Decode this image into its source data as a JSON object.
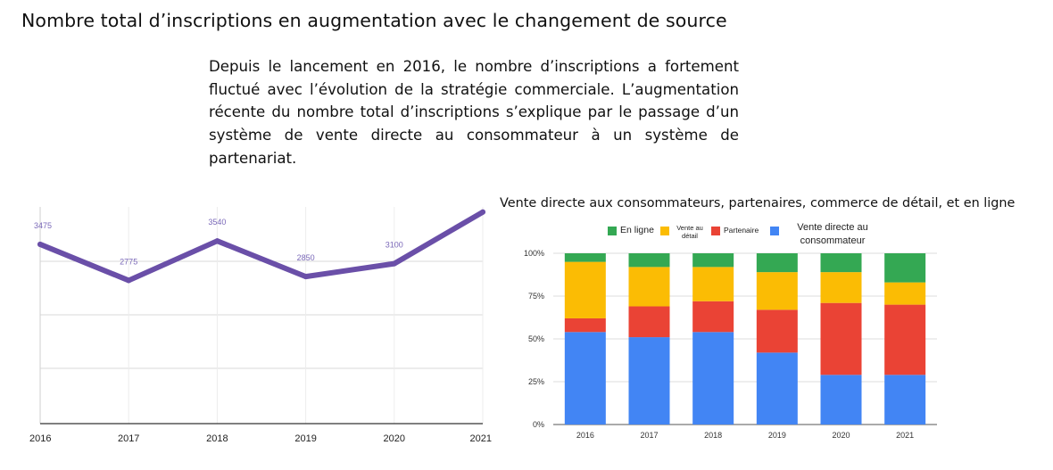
{
  "page": {
    "title": "Nombre total d’inscriptions en augmentation avec le changement de source",
    "description": "Depuis le lancement en 2016, le nombre d’inscriptions a fortement fluctué avec l’évolution de la stratégie commerciale. L’augmentation récente du nombre total d’inscriptions s’explique par le passage d’un système de vente directe au consommateur à un système de partenariat."
  },
  "colors": {
    "line": "#6a4fa8",
    "line_label": "#7a68b8",
    "en_ligne": "#34a853",
    "vente_detail": "#fbbc04",
    "partenaire": "#ea4335",
    "vente_directe": "#4285f4",
    "grid": "#d9d9d9"
  },
  "chart_data": [
    {
      "type": "line",
      "x": [
        "2016",
        "2017",
        "2018",
        "2019",
        "2020",
        "2021"
      ],
      "series": [
        {
          "values": [
            3475,
            2775,
            3540,
            2850,
            3100,
            4100
          ]
        }
      ],
      "point_labels": [
        "3475",
        "2775",
        "3540",
        "2850",
        "3100",
        ""
      ],
      "xlabel": "",
      "ylabel": "",
      "ylim": [
        0,
        4200
      ],
      "grid": "horizontal"
    },
    {
      "type": "bar",
      "stacked": "percent",
      "title": "Vente directe aux consommateurs, partenaires, commerce de détail, et en ligne",
      "categories": [
        "2016",
        "2017",
        "2018",
        "2019",
        "2020",
        "2021"
      ],
      "series": [
        {
          "name": "Vente directe au consommateur",
          "color_key": "vente_directe",
          "values": [
            54,
            51,
            54,
            42,
            29,
            29
          ]
        },
        {
          "name": "Partenaire",
          "color_key": "partenaire",
          "values": [
            8,
            18,
            18,
            25,
            42,
            41
          ]
        },
        {
          "name": "Vente au détail",
          "color_key": "vente_detail",
          "values": [
            33,
            23,
            20,
            22,
            18,
            13
          ]
        },
        {
          "name": "En ligne",
          "color_key": "en_ligne",
          "values": [
            5,
            8,
            8,
            11,
            11,
            17
          ]
        }
      ],
      "y_ticks": [
        "0%",
        "25%",
        "50%",
        "75%",
        "100%"
      ],
      "ylim": [
        0,
        100
      ],
      "legend": {
        "placement": "top",
        "entries": [
          {
            "label": "En ligne",
            "color_key": "en_ligne"
          },
          {
            "label_lines": [
              "Vente au",
              "détail"
            ],
            "color_key": "vente_detail"
          },
          {
            "label": "Partenaire",
            "color_key": "partenaire"
          },
          {
            "label_lines": [
              "Vente directe au",
              "consommateur"
            ],
            "color_key": "vente_directe"
          }
        ]
      }
    }
  ]
}
